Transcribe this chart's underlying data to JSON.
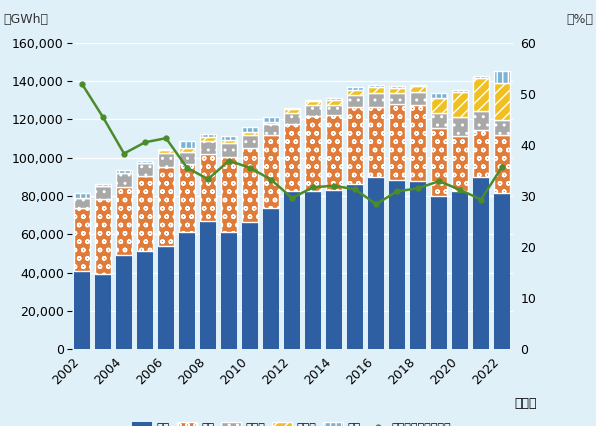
{
  "years": [
    2002,
    2003,
    2004,
    2005,
    2006,
    2007,
    2008,
    2009,
    2010,
    2011,
    2012,
    2013,
    2014,
    2015,
    2016,
    2017,
    2018,
    2019,
    2020,
    2021,
    2022
  ],
  "thermal": [
    41090,
    39466,
    49399,
    51351,
    53928,
    61012,
    66877,
    61362,
    66391,
    73475,
    82331,
    82711,
    83049,
    86347,
    90099,
    88531,
    87727,
    80137,
    82336,
    90073,
    81751
  ],
  "hydro": [
    32641,
    38717,
    35133,
    39213,
    41080,
    35426,
    35121,
    38799,
    38799,
    38084,
    35173,
    39056,
    39207,
    39840,
    36192,
    39584,
    39952,
    35370,
    29093,
    24116,
    30186
  ],
  "nuclear": [
    5393,
    7025,
    7313,
    6374,
    7153,
    6721,
    6849,
    7589,
    6692,
    5892,
    5904,
    5732,
    5258,
    6519,
    7677,
    5716,
    6453,
    7927,
    10011,
    10170,
    7469
  ],
  "renewable": [
    0,
    0,
    0,
    0,
    1907,
    1864,
    1761,
    1543,
    1502,
    1371,
    1974,
    1978,
    2301,
    2510,
    2632,
    2635,
    3350,
    7728,
    12737,
    17435,
    19340
  ],
  "import": [
    2210,
    1234,
    1441,
    1222,
    559,
    3459,
    1774,
    2040,
    2351,
    2412,
    423,
    342,
    1390,
    1655,
    1470,
    734,
    344,
    2746,
    1204,
    819,
    6310
  ],
  "re_ratio": [
    51.9,
    45.4,
    38.3,
    40.5,
    41.3,
    35.5,
    33.3,
    36.9,
    35.5,
    33.2,
    29.6,
    31.7,
    32.0,
    31.3,
    28.4,
    30.9,
    31.5,
    32.9,
    31.2,
    29.3,
    35.7
  ],
  "bar_colors": {
    "thermal": "#2e5fa3",
    "hydro": "#e07b39",
    "nuclear": "#a8a8a8",
    "renewable": "#f0c020",
    "import": "#7ab3d4"
  },
  "line_color": "#4a8c2a",
  "bg_color": "#dff0f8",
  "ylim_left": [
    0,
    160000
  ],
  "ylim_right": [
    0,
    60
  ],
  "yticks_left": [
    0,
    20000,
    40000,
    60000,
    80000,
    100000,
    120000,
    140000,
    160000
  ],
  "yticks_right": [
    0,
    10,
    20,
    30,
    40,
    50,
    60
  ],
  "tick_fontsize": 9,
  "legend_fontsize": 8
}
